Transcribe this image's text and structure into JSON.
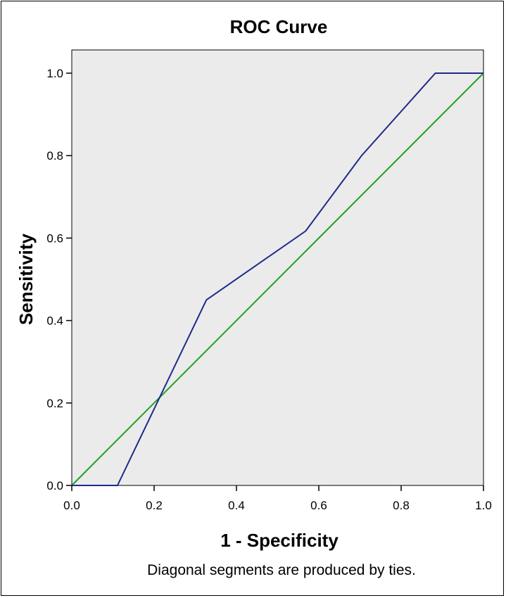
{
  "chart_data": {
    "type": "line",
    "title": "ROC Curve",
    "xlabel": "1 - Specificity",
    "ylabel": "Sensitivity",
    "xlim": [
      0,
      1
    ],
    "ylim": [
      0,
      1
    ],
    "xticks": [
      "0.0",
      "0.2",
      "0.4",
      "0.6",
      "0.8",
      "1.0"
    ],
    "yticks": [
      "0.0",
      "0.2",
      "0.4",
      "0.6",
      "0.8",
      "1.0"
    ],
    "grid": false,
    "legend": "none",
    "series": [
      {
        "color": "#1f2a8a",
        "x": [
          0.0,
          0.111,
          0.327,
          0.568,
          0.704,
          0.883,
          1.0
        ],
        "y": [
          0.0,
          0.0,
          0.45,
          0.617,
          0.8,
          1.0,
          1.0
        ]
      },
      {
        "color": "#22a022",
        "x": [
          0.0,
          1.0
        ],
        "y": [
          0.0,
          1.0
        ]
      }
    ],
    "footnote": "Diagonal segments are produced by ties.",
    "plot_background": "#ebebeb"
  }
}
